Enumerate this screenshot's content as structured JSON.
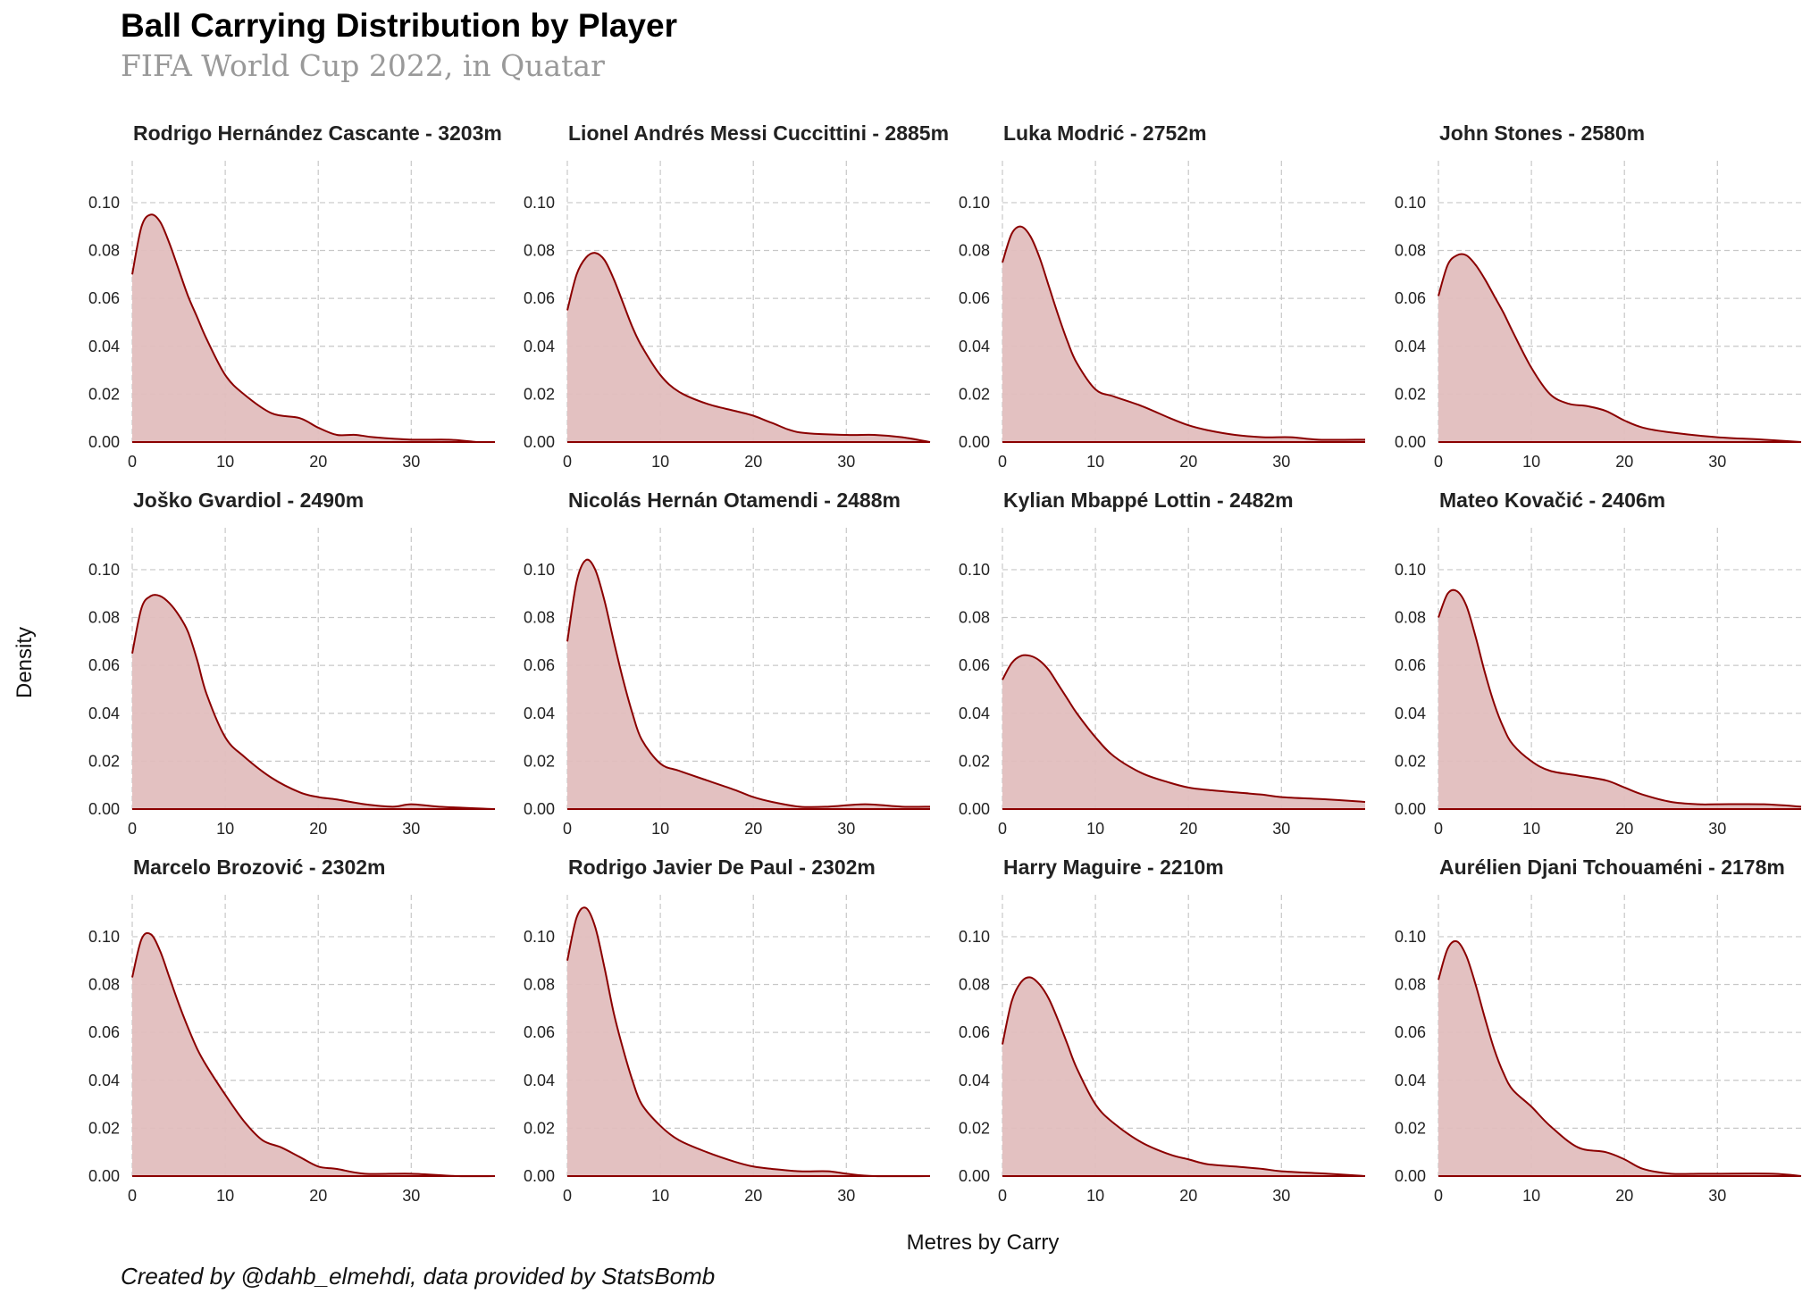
{
  "title": "Ball Carrying Distribution by Player",
  "subtitle": "FIFA World Cup 2022, in Quatar",
  "credits": "Created by @dahb_elmehdi, data provided by StatsBomb",
  "colors": {
    "line": "#8b0000",
    "fill": "#e1bebe",
    "grid": "#c8c8c8"
  },
  "chart_data": {
    "type": "area",
    "layout": "small-multiples-3x4",
    "xlabel": "Metres by Carry",
    "ylabel": "Density",
    "xlim": [
      0,
      39
    ],
    "ylim": [
      0,
      0.1175
    ],
    "x_ticks": [
      "0",
      "10",
      "20",
      "30"
    ],
    "y_ticks": [
      "0.00",
      "0.02",
      "0.04",
      "0.06",
      "0.08",
      "0.10"
    ],
    "x_tick_values": [
      0,
      10,
      20,
      30
    ],
    "y_tick_values": [
      0,
      0.02,
      0.04,
      0.06,
      0.08,
      0.1
    ],
    "grid": true,
    "panels": [
      {
        "title": "Rodrigo Hernández Cascante - 3203m",
        "x": [
          0,
          1,
          2,
          3,
          4,
          5,
          6,
          7,
          8,
          10,
          12,
          15,
          18,
          20,
          22,
          24,
          26,
          30,
          34,
          37
        ],
        "y": [
          0.07,
          0.09,
          0.095,
          0.092,
          0.083,
          0.072,
          0.061,
          0.052,
          0.043,
          0.028,
          0.02,
          0.012,
          0.01,
          0.006,
          0.003,
          0.003,
          0.002,
          0.001,
          0.001,
          0
        ]
      },
      {
        "title": "Lionel Andrés Messi Cuccittini - 2885m",
        "x": [
          0,
          1,
          2,
          3,
          4,
          5,
          6,
          7,
          8,
          10,
          12,
          15,
          18,
          20,
          22,
          25,
          30,
          33,
          36,
          39
        ],
        "y": [
          0.055,
          0.07,
          0.077,
          0.079,
          0.076,
          0.068,
          0.058,
          0.048,
          0.04,
          0.028,
          0.021,
          0.016,
          0.013,
          0.011,
          0.008,
          0.004,
          0.003,
          0.003,
          0.002,
          0
        ]
      },
      {
        "title": "Luka Modrić - 2752m",
        "x": [
          0,
          1,
          2,
          3,
          4,
          5,
          6,
          7,
          8,
          10,
          12,
          15,
          18,
          20,
          22,
          25,
          28,
          31,
          34,
          39
        ],
        "y": [
          0.075,
          0.087,
          0.09,
          0.086,
          0.077,
          0.065,
          0.053,
          0.042,
          0.033,
          0.022,
          0.019,
          0.015,
          0.01,
          0.007,
          0.005,
          0.003,
          0.002,
          0.002,
          0.001,
          0.001
        ]
      },
      {
        "title": "John Stones - 2580m",
        "x": [
          0,
          1,
          2,
          3,
          4,
          5,
          6,
          7,
          8,
          10,
          12,
          14,
          16,
          18,
          20,
          22,
          25,
          30,
          35,
          39
        ],
        "y": [
          0.061,
          0.074,
          0.078,
          0.078,
          0.074,
          0.068,
          0.061,
          0.054,
          0.046,
          0.031,
          0.02,
          0.016,
          0.015,
          0.013,
          0.009,
          0.006,
          0.004,
          0.002,
          0.001,
          0
        ]
      },
      {
        "title": "Joško Gvardiol - 2490m",
        "x": [
          0,
          1,
          2,
          3,
          4,
          5,
          6,
          7,
          8,
          10,
          12,
          15,
          18,
          20,
          22,
          25,
          28,
          30,
          33,
          39
        ],
        "y": [
          0.065,
          0.084,
          0.089,
          0.089,
          0.086,
          0.081,
          0.074,
          0.062,
          0.048,
          0.03,
          0.022,
          0.013,
          0.007,
          0.005,
          0.004,
          0.002,
          0.001,
          0.002,
          0.001,
          0
        ]
      },
      {
        "title": "Nicolás Hernán Otamendi - 2488m",
        "x": [
          0,
          1,
          2,
          3,
          4,
          5,
          6,
          7,
          8,
          10,
          12,
          15,
          18,
          20,
          22,
          25,
          28,
          32,
          36,
          39
        ],
        "y": [
          0.07,
          0.095,
          0.104,
          0.1,
          0.087,
          0.07,
          0.054,
          0.04,
          0.029,
          0.019,
          0.016,
          0.012,
          0.008,
          0.005,
          0.003,
          0.001,
          0.001,
          0.002,
          0.001,
          0.001
        ]
      },
      {
        "title": "Kylian Mbappé Lottin - 2482m",
        "x": [
          0,
          1,
          2,
          3,
          4,
          5,
          6,
          7,
          8,
          10,
          12,
          15,
          18,
          20,
          22,
          25,
          28,
          30,
          35,
          39
        ],
        "y": [
          0.054,
          0.061,
          0.064,
          0.064,
          0.062,
          0.058,
          0.052,
          0.046,
          0.04,
          0.03,
          0.022,
          0.015,
          0.011,
          0.009,
          0.008,
          0.007,
          0.006,
          0.005,
          0.004,
          0.003
        ]
      },
      {
        "title": "Mateo Kovačić - 2406m",
        "x": [
          0,
          1,
          2,
          3,
          4,
          5,
          6,
          7,
          8,
          10,
          12,
          15,
          18,
          20,
          22,
          25,
          28,
          30,
          35,
          39
        ],
        "y": [
          0.08,
          0.09,
          0.091,
          0.085,
          0.072,
          0.057,
          0.044,
          0.034,
          0.027,
          0.02,
          0.016,
          0.014,
          0.012,
          0.009,
          0.006,
          0.003,
          0.002,
          0.002,
          0.002,
          0.001
        ]
      },
      {
        "title": "Marcelo Brozović - 2302m",
        "x": [
          0,
          1,
          2,
          3,
          4,
          5,
          6,
          7,
          8,
          10,
          12,
          14,
          16,
          18,
          20,
          22,
          25,
          30,
          35,
          39
        ],
        "y": [
          0.083,
          0.099,
          0.101,
          0.094,
          0.083,
          0.072,
          0.062,
          0.053,
          0.046,
          0.034,
          0.023,
          0.015,
          0.012,
          0.008,
          0.004,
          0.003,
          0.001,
          0.001,
          0,
          0
        ]
      },
      {
        "title": "Rodrigo Javier De Paul - 2302m",
        "x": [
          0,
          1,
          2,
          3,
          4,
          5,
          6,
          7,
          8,
          10,
          12,
          15,
          18,
          20,
          22,
          25,
          28,
          30,
          33,
          39
        ],
        "y": [
          0.09,
          0.108,
          0.112,
          0.104,
          0.087,
          0.068,
          0.053,
          0.04,
          0.03,
          0.021,
          0.015,
          0.01,
          0.006,
          0.004,
          0.003,
          0.002,
          0.002,
          0.001,
          0,
          0
        ]
      },
      {
        "title": "Harry Maguire - 2210m",
        "x": [
          0,
          1,
          2,
          3,
          4,
          5,
          6,
          7,
          8,
          10,
          12,
          15,
          18,
          20,
          22,
          25,
          28,
          30,
          35,
          39
        ],
        "y": [
          0.055,
          0.073,
          0.081,
          0.083,
          0.08,
          0.074,
          0.065,
          0.055,
          0.045,
          0.03,
          0.022,
          0.014,
          0.009,
          0.007,
          0.005,
          0.004,
          0.003,
          0.002,
          0.001,
          0
        ]
      },
      {
        "title": "Aurélien Djani Tchouaméni - 2178m",
        "x": [
          0,
          1,
          2,
          3,
          4,
          5,
          6,
          7,
          8,
          10,
          12,
          15,
          18,
          20,
          22,
          25,
          28,
          30,
          36,
          39
        ],
        "y": [
          0.082,
          0.095,
          0.098,
          0.092,
          0.08,
          0.066,
          0.053,
          0.043,
          0.036,
          0.029,
          0.021,
          0.012,
          0.01,
          0.007,
          0.003,
          0.001,
          0.001,
          0.001,
          0.001,
          0
        ]
      }
    ]
  }
}
